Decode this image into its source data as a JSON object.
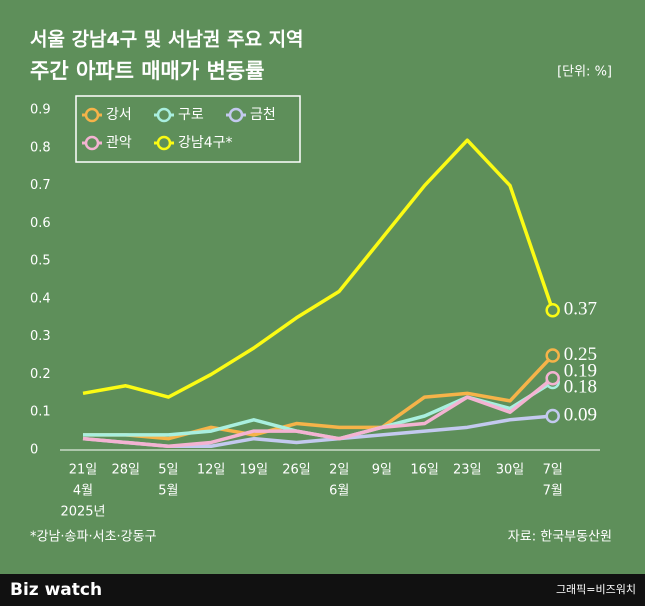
{
  "chart_data": {
    "type": "line",
    "title": "서울 강남4구 및 서남권 주요 지역",
    "subtitle": "주간 아파트 매매가 변동률",
    "unit": "[단위: %]",
    "categories": [
      "21일",
      "28일",
      "5일",
      "12일",
      "19일",
      "26일",
      "2일",
      "9일",
      "16일",
      "23일",
      "30일",
      "7일"
    ],
    "months": [
      "4월",
      null,
      "5월",
      null,
      null,
      null,
      "6월",
      null,
      null,
      null,
      null,
      "7월"
    ],
    "year": "2025년",
    "ylim": [
      0,
      0.9
    ],
    "yticks": [
      0,
      0.1,
      0.2,
      0.3,
      0.4,
      0.5,
      0.6,
      0.7,
      0.8,
      0.9
    ],
    "grid": false,
    "legend": "top-left",
    "series": [
      {
        "name": "강서",
        "color": "#f6b349",
        "values": [
          0.04,
          0.04,
          0.03,
          0.06,
          0.04,
          0.07,
          0.06,
          0.06,
          0.14,
          0.15,
          0.13,
          0.25
        ]
      },
      {
        "name": "구로",
        "color": "#a9efdf",
        "values": [
          0.04,
          0.04,
          0.04,
          0.05,
          0.08,
          0.05,
          0.03,
          0.06,
          0.09,
          0.14,
          0.11,
          0.18
        ]
      },
      {
        "name": "금천",
        "color": "#c3c9ef",
        "values": [
          0.03,
          0.02,
          0.01,
          0.01,
          0.03,
          0.02,
          0.03,
          0.04,
          0.05,
          0.06,
          0.08,
          0.09
        ]
      },
      {
        "name": "관악",
        "color": "#f4b3d2",
        "values": [
          0.03,
          0.02,
          0.01,
          0.02,
          0.05,
          0.05,
          0.03,
          0.06,
          0.07,
          0.14,
          0.1,
          0.19
        ]
      },
      {
        "name": "강남4구*",
        "color": "#fbfb14",
        "values": [
          0.15,
          0.17,
          0.14,
          0.2,
          0.27,
          0.35,
          0.42,
          0.56,
          0.7,
          0.82,
          0.7,
          0.37
        ]
      }
    ],
    "footnote": "*강남·송파·서초·강동구",
    "source": "자료: 한국부동산원",
    "brand": "Biz watch",
    "credit": "그래픽=비즈워치"
  }
}
